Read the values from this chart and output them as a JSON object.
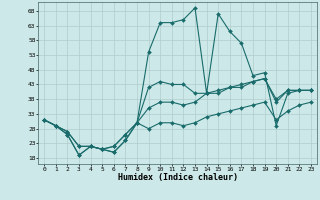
{
  "title": "",
  "xlabel": "Humidex (Indice chaleur)",
  "background_color": "#cce8e8",
  "grid_color": "#b0cccc",
  "line_color": "#1a6b6b",
  "xlim": [
    -0.5,
    23.5
  ],
  "ylim": [
    16,
    71
  ],
  "yticks": [
    18,
    23,
    28,
    33,
    38,
    43,
    48,
    53,
    58,
    63,
    68
  ],
  "xticks": [
    0,
    1,
    2,
    3,
    4,
    5,
    6,
    7,
    8,
    9,
    10,
    11,
    12,
    13,
    14,
    15,
    16,
    17,
    18,
    19,
    20,
    21,
    22,
    23
  ],
  "series": [
    [
      31,
      29,
      26,
      19,
      22,
      21,
      20,
      24,
      30,
      54,
      64,
      64,
      65,
      69,
      40,
      67,
      61,
      57,
      46,
      47,
      29,
      40,
      41,
      41
    ],
    [
      31,
      29,
      26,
      19,
      22,
      21,
      20,
      24,
      30,
      42,
      44,
      43,
      43,
      40,
      40,
      40,
      42,
      43,
      44,
      45,
      38,
      41,
      41,
      41
    ],
    [
      31,
      29,
      27,
      22,
      22,
      21,
      22,
      26,
      30,
      35,
      37,
      37,
      36,
      37,
      40,
      41,
      42,
      42,
      44,
      45,
      37,
      41,
      41,
      41
    ],
    [
      31,
      29,
      27,
      22,
      22,
      21,
      22,
      26,
      30,
      28,
      30,
      30,
      29,
      30,
      32,
      33,
      34,
      35,
      36,
      37,
      31,
      34,
      36,
      37
    ]
  ]
}
